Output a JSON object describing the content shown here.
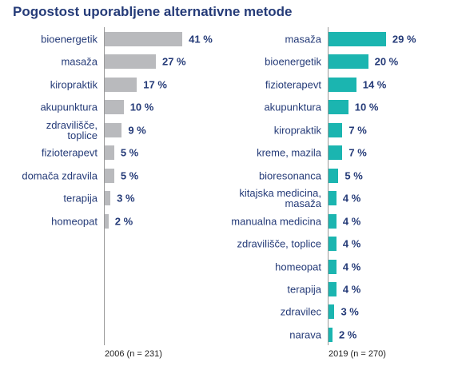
{
  "title": "Pogostost uporabljene alternativne metode",
  "chart_data": [
    {
      "type": "bar",
      "orientation": "horizontal",
      "color": "#b9babd",
      "xlabel": "2006 (n = 231)",
      "categories": [
        "bioenergetik",
        "masaža",
        "kiropraktik",
        "akupunktura",
        "zdravilišče,\ntoplice",
        "fizioterapevt",
        "domača zdravila",
        "terapija",
        "homeopat"
      ],
      "values": [
        41,
        27,
        17,
        10,
        9,
        5,
        5,
        3,
        2
      ],
      "value_labels": [
        "41 %",
        "27 %",
        "17 %",
        "10 %",
        "9 %",
        "5 %",
        "5 %",
        "3 %",
        "2 %"
      ]
    },
    {
      "type": "bar",
      "orientation": "horizontal",
      "color": "#1bb5b0",
      "xlabel": "2019 (n = 270)",
      "categories": [
        "masaža",
        "bioenergetik",
        "fizioterapevt",
        "akupunktura",
        "kiropraktik",
        "kreme, mazila",
        "bioresonanca",
        "kitajska medicina,\nmasaža",
        "manualna medicina",
        "zdravilišče, toplice",
        "homeopat",
        "terapija",
        "zdravilec",
        "narava"
      ],
      "values": [
        29,
        20,
        14,
        10,
        7,
        7,
        5,
        4,
        4,
        4,
        4,
        4,
        3,
        2
      ],
      "value_labels": [
        "29 %",
        "20 %",
        "14 %",
        "10 %",
        "7 %",
        "7 %",
        "5 %",
        "4 %",
        "4 %",
        "4 %",
        "4 %",
        "4 %",
        "3 %",
        "2 %"
      ]
    }
  ]
}
